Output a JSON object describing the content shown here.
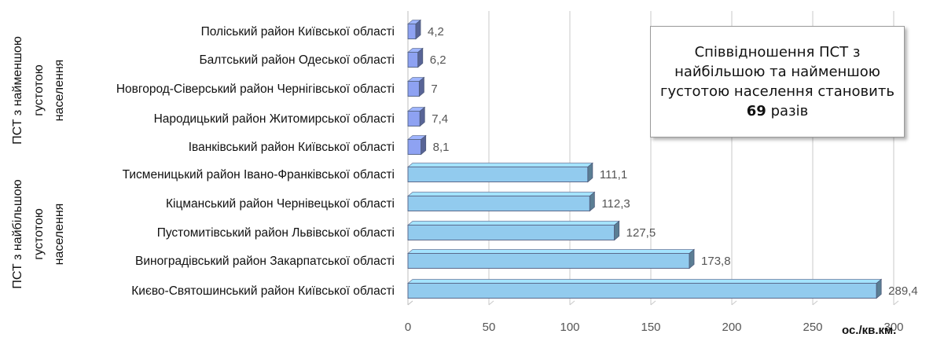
{
  "chart_data": {
    "type": "bar",
    "orientation": "horizontal",
    "groups": [
      {
        "label_lines": [
          "ПСТ з найменшою",
          "густотою",
          "населення"
        ],
        "categories": [
          "Поліський район Київської області",
          "Балтський  район Одеської області",
          "Новгород-Сіверський район Чернігівської області",
          "Народицький район Житомирської області",
          "Іванківський район Київської області"
        ],
        "values": [
          4.2,
          6.2,
          7,
          7.4,
          8.1
        ],
        "value_labels": [
          "4,2",
          "6,2",
          "7",
          "7,4",
          "8,1"
        ],
        "color": "#8ea2f2"
      },
      {
        "label_lines": [
          "ПСТ з найбільшою",
          "густотою",
          "населення"
        ],
        "categories": [
          "Тисменицький район Івано-Франківської області",
          "Кіцманський район Чернівецької області",
          "Пустомитівський район Львівської області",
          "Виноградівський район Закарпатської області",
          "Києво-Святошинський район Київської області"
        ],
        "values": [
          111.1,
          112.3,
          127.5,
          173.8,
          289.4
        ],
        "value_labels": [
          "111,1",
          "112,3",
          "127,5",
          "173,8",
          "289,4"
        ],
        "color": "#92cbee"
      }
    ],
    "xlim": [
      0,
      300
    ],
    "xticks": [
      0,
      50,
      100,
      150,
      200,
      250,
      300
    ],
    "xlabel": "ос./кв.км.",
    "grid": true
  },
  "annotation": {
    "line1": "Співвідношення ПСТ з",
    "line2": "найбільшою та найменшою",
    "line3": "густотою населення становить",
    "ratio": "69",
    "suffix": " разів"
  },
  "colors": {
    "low_bar": "#8ea2f2",
    "high_bar": "#92cbee",
    "grid": "#c8c8c8",
    "text": "#111111",
    "value_text": "#555555"
  }
}
